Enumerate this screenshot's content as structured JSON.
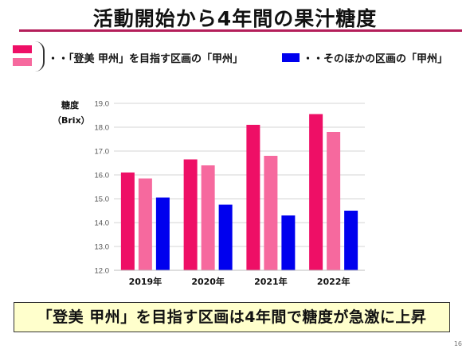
{
  "title": "活動開始から4年間の果汁糖度",
  "legend": {
    "target": "・・「登美 甲州」を目指す区画の「甲州」",
    "other": "・・そのほかの区画の「甲州」"
  },
  "colors": {
    "title_rule": "#b41e5a",
    "series_2019_target": "#ee0f66",
    "series_target_light": "#f6699e",
    "series_other": "#0000ee",
    "conclusion_bg": "#ffffcc"
  },
  "conclusion": "「登美 甲州」を目指す区画は4年間で糖度が急激に上昇",
  "page_number": "16",
  "chart_data": {
    "type": "bar",
    "ylabel_line1": "糖度",
    "ylabel_line2": "（Brix）",
    "ylim": [
      12.0,
      19.0
    ],
    "yticks": [
      "12.0",
      "13.0",
      "14.0",
      "15.0",
      "16.0",
      "17.0",
      "18.0",
      "19.0"
    ],
    "grid": true,
    "categories": [
      "2019年",
      "2020年",
      "2021年",
      "2022年"
    ],
    "series": [
      {
        "color": "#ee0f66",
        "values": [
          16.1,
          16.65,
          18.1,
          18.55
        ]
      },
      {
        "color": "#f6699e",
        "values": [
          15.85,
          16.4,
          16.8,
          17.8
        ]
      },
      {
        "color": "#0000ee",
        "values": [
          15.05,
          14.75,
          14.3,
          14.5
        ]
      }
    ]
  }
}
